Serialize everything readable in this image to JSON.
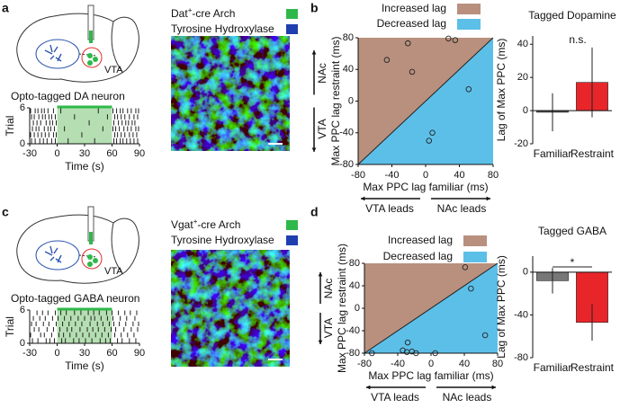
{
  "figure": {
    "panel_labels": [
      "a",
      "b",
      "c",
      "d"
    ],
    "diagrams": [
      {
        "region": "VTA"
      },
      {
        "region": "VTA"
      }
    ],
    "micrographs": [
      {
        "label_parts": [
          "Dat",
          "+",
          "-cre Arch"
        ],
        "label_color": "#2fb84a",
        "stain": "Tyrosine Hydroxylase",
        "stain_color": "#1f3fae"
      },
      {
        "label_parts": [
          "Vgat",
          "+",
          "-cre Arch"
        ],
        "label_color": "#2fb84a",
        "stain": "Tyrosine Hydroxylase",
        "stain_color": "#1f3fae"
      }
    ]
  },
  "chart_data": [
    {
      "type": "raster",
      "title": "Opto-tagged DA neuron",
      "x_label": "Time (s)",
      "y_label": "Trial",
      "xlim": [
        -30,
        90
      ],
      "xticks": [
        -30,
        0,
        30,
        60,
        90
      ],
      "ylim": [
        0,
        6
      ],
      "yticks": [
        0,
        6
      ],
      "stim_window": [
        0,
        60
      ],
      "stim_color": "#2fb84a",
      "stim_fill": "#a8d9a4",
      "spike_color": "#222",
      "trials": [
        [
          -28,
          -24,
          -19,
          -15,
          -11,
          -6,
          -2,
          12,
          41,
          62,
          65,
          69,
          72,
          76,
          80,
          84,
          88
        ],
        [
          -29,
          -25,
          -21,
          -17,
          -13,
          -9,
          -4,
          -1,
          27,
          63,
          66,
          70,
          74,
          79,
          83,
          87
        ],
        [
          -27,
          -23,
          -20,
          -14,
          -10,
          -7,
          -3,
          8,
          50,
          61,
          64,
          68,
          73,
          77,
          81,
          86,
          89
        ],
        [
          -30,
          -26,
          -22,
          -18,
          -12,
          -8,
          -5,
          -1,
          35,
          62,
          67,
          71,
          75,
          78,
          82,
          85
        ],
        [
          -28,
          -25,
          -20,
          -16,
          -13,
          -9,
          -6,
          -2,
          19,
          55,
          63,
          66,
          70,
          74,
          79,
          84,
          88
        ],
        [
          -29,
          -24,
          -21,
          -17,
          -14,
          -10,
          -4,
          4,
          45,
          61,
          65,
          69,
          72,
          77,
          81,
          86,
          89
        ]
      ]
    },
    {
      "type": "scatter",
      "x_label": "Max PPC lag familiar (ms)",
      "y_label": "Max PPC lag restraint (ms)",
      "xlim": [
        -80,
        80
      ],
      "ylim": [
        -80,
        80
      ],
      "xticks": [
        -80,
        -40,
        0,
        40,
        80
      ],
      "yticks": [
        -80,
        -40,
        0,
        40,
        80
      ],
      "regions": [
        {
          "name": "Increased lag",
          "color": "#b8907d"
        },
        {
          "name": "Decreased lag",
          "color": "#5cbfe8"
        }
      ],
      "direction_labels": {
        "up": "NAc",
        "down": "VTA",
        "left": "VTA leads",
        "right": "NAc leads"
      },
      "x": [
        -46,
        -21,
        -16,
        27,
        35,
        51,
        4,
        8
      ],
      "y": [
        52,
        73,
        37,
        79,
        77,
        15,
        -50,
        -40
      ]
    },
    {
      "type": "bar",
      "title": "Tagged Dopamine",
      "y_label": "Lag of Max PPC (ms)",
      "categories": [
        "Familiar",
        "Restraint"
      ],
      "values": [
        -1,
        17
      ],
      "errors": [
        11.5,
        21
      ],
      "colors": [
        "#555555",
        "#e8262a"
      ],
      "ylim": [
        -20,
        45
      ],
      "yticks": [
        -20,
        0,
        20,
        40
      ],
      "annotation": "n.s.",
      "bracket": false
    },
    {
      "type": "raster",
      "title": "Opto-tagged GABA neuron",
      "x_label": "Time (s)",
      "y_label": "Trial",
      "xlim": [
        -30,
        90
      ],
      "xticks": [
        -30,
        0,
        30,
        60,
        90
      ],
      "ylim": [
        0,
        6
      ],
      "yticks": [
        0,
        6
      ],
      "stim_window": [
        0,
        60
      ],
      "stim_color": "#2fb84a",
      "stim_fill": "#a8d9a4",
      "spike_color": "#222",
      "trials": [
        [
          -27,
          -21,
          -12,
          -8,
          -3,
          5,
          9,
          18,
          24,
          31,
          38,
          47,
          53,
          58,
          66,
          71,
          79,
          86
        ],
        [
          -29,
          -18,
          -14,
          -6,
          2,
          7,
          14,
          21,
          28,
          35,
          42,
          49,
          56,
          63,
          70,
          77,
          84
        ],
        [
          -25,
          -20,
          -11,
          -4,
          3,
          11,
          16,
          25,
          33,
          39,
          45,
          52,
          59,
          64,
          73,
          81,
          88
        ],
        [
          -28,
          -23,
          -15,
          -9,
          -1,
          6,
          13,
          20,
          27,
          36,
          44,
          50,
          57,
          62,
          68,
          75,
          83,
          89
        ],
        [
          -26,
          -19,
          -13,
          -5,
          1,
          8,
          15,
          23,
          30,
          37,
          41,
          48,
          55,
          61,
          69,
          76,
          85
        ],
        [
          -30,
          -22,
          -16,
          -10,
          -2,
          4,
          10,
          19,
          26,
          34,
          40,
          46,
          54,
          60,
          67,
          74,
          80,
          87
        ]
      ]
    },
    {
      "type": "scatter",
      "x_label": "Max PPC lag familiar (ms)",
      "y_label": "Max PPC lag restraint (ms)",
      "xlim": [
        -80,
        80
      ],
      "ylim": [
        -80,
        80
      ],
      "xticks": [
        -80,
        -40,
        0,
        40,
        80
      ],
      "yticks": [
        -80,
        -40,
        0,
        40,
        80
      ],
      "regions": [
        {
          "name": "Increased lag",
          "color": "#b8907d"
        },
        {
          "name": "Decreased lag",
          "color": "#5cbfe8"
        }
      ],
      "direction_labels": {
        "up": "NAc",
        "down": "VTA",
        "left": "VTA leads",
        "right": "NAc leads"
      },
      "x": [
        41,
        48,
        65,
        -71,
        -34,
        -29,
        -28,
        -23,
        -18,
        5
      ],
      "y": [
        73,
        35,
        -48,
        -80,
        -75,
        -78,
        -61,
        -77,
        -80,
        -80
      ]
    },
    {
      "type": "bar",
      "title": "Tagged GABA",
      "y_label": "Lag of Max PPC (ms)",
      "categories": [
        "Familiar",
        "Restraint"
      ],
      "values": [
        -8,
        -47
      ],
      "errors": [
        12,
        17
      ],
      "colors": [
        "#777777",
        "#e8262a"
      ],
      "ylim": [
        -80,
        15
      ],
      "yticks": [
        -80,
        -40,
        0
      ],
      "annotation": "*",
      "bracket": true
    }
  ]
}
